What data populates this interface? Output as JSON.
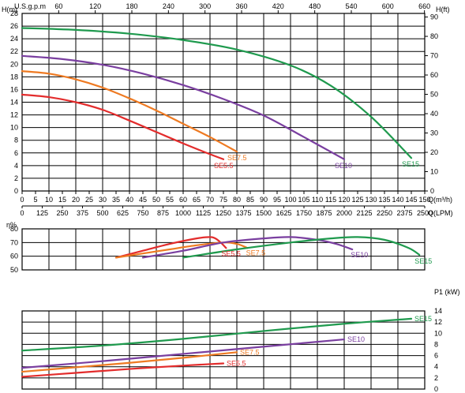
{
  "chart_data": [
    {
      "type": "line",
      "panel": "head",
      "ylabel_left": "H(m)",
      "ylabel_right": "H(ft)",
      "top_axis_label": "U.S.g.p.m",
      "top_ticks": [
        "60",
        "120",
        "180",
        "240",
        "300",
        "360",
        "420",
        "480",
        "540",
        "600",
        "660"
      ],
      "xlabel_1": "Q(m³/h)",
      "xlabel_2": "Q(LPM)",
      "x_ticks": [
        "0",
        "5",
        "10",
        "15",
        "20",
        "25",
        "30",
        "35",
        "40",
        "45",
        "50",
        "55",
        "60",
        "65",
        "70",
        "75",
        "80",
        "85",
        "90",
        "95",
        "100",
        "105",
        "110",
        "115",
        "120",
        "125",
        "130",
        "135",
        "140",
        "145",
        "150"
      ],
      "lpm_ticks": [
        "0",
        "125",
        "250",
        "375",
        "500",
        "625",
        "750",
        "875",
        "1000",
        "1125",
        "1250",
        "1375",
        "1500",
        "1625",
        "1750",
        "1875",
        "2000",
        "2125",
        "2250",
        "2375",
        "2500"
      ],
      "y_ticks": [
        "0",
        "2",
        "4",
        "6",
        "8",
        "10",
        "12",
        "14",
        "16",
        "18",
        "20",
        "22",
        "24",
        "26",
        "28"
      ],
      "y_ticks_right": [
        "0",
        "10",
        "20",
        "30",
        "40",
        "50",
        "60",
        "70",
        "80",
        "90"
      ],
      "xlim": [
        0,
        150
      ],
      "ylim": [
        0,
        28
      ],
      "grid": true,
      "series": [
        {
          "name": "SE5.5",
          "color": "#e32c2c",
          "points": [
            [
              0,
              15.2
            ],
            [
              10,
              14.8
            ],
            [
              20,
              14.0
            ],
            [
              30,
              12.8
            ],
            [
              40,
              11.1
            ],
            [
              50,
              9.3
            ],
            [
              60,
              7.5
            ],
            [
              70,
              5.8
            ],
            [
              75,
              5.0
            ]
          ]
        },
        {
          "name": "SE7.5",
          "color": "#ee7a22",
          "points": [
            [
              0,
              18.9
            ],
            [
              10,
              18.5
            ],
            [
              20,
              17.6
            ],
            [
              30,
              16.3
            ],
            [
              40,
              14.6
            ],
            [
              50,
              12.7
            ],
            [
              60,
              10.6
            ],
            [
              70,
              8.5
            ],
            [
              80,
              6.2
            ]
          ]
        },
        {
          "name": "SE10",
          "color": "#7a3fa0",
          "points": [
            [
              0,
              21.3
            ],
            [
              15,
              20.8
            ],
            [
              30,
              19.9
            ],
            [
              45,
              18.5
            ],
            [
              60,
              16.7
            ],
            [
              75,
              14.5
            ],
            [
              90,
              11.9
            ],
            [
              105,
              8.5
            ],
            [
              120,
              5.0
            ]
          ]
        },
        {
          "name": "SE15",
          "color": "#1f9a4e",
          "points": [
            [
              0,
              25.7
            ],
            [
              20,
              25.4
            ],
            [
              40,
              24.8
            ],
            [
              60,
              23.8
            ],
            [
              80,
              22.3
            ],
            [
              100,
              19.8
            ],
            [
              115,
              16.6
            ],
            [
              130,
              11.7
            ],
            [
              145,
              5.2
            ]
          ]
        }
      ]
    },
    {
      "type": "line",
      "panel": "efficiency",
      "ylabel": "η%",
      "y_ticks": [
        "50",
        "60",
        "70",
        "80"
      ],
      "ylim": [
        50,
        80
      ],
      "xlim": [
        0,
        150
      ],
      "grid": true,
      "series": [
        {
          "name": "SE5.5",
          "color": "#e32c2c",
          "points": [
            [
              35,
              59
            ],
            [
              45,
              64
            ],
            [
              55,
              69
            ],
            [
              65,
              73
            ],
            [
              70,
              74
            ],
            [
              72,
              73
            ],
            [
              74,
              70
            ],
            [
              76,
              66
            ]
          ]
        },
        {
          "name": "SE7.5",
          "color": "#ee7a22",
          "points": [
            [
              35,
              59
            ],
            [
              45,
              62
            ],
            [
              55,
              65
            ],
            [
              65,
              68
            ],
            [
              75,
              70
            ],
            [
              80,
              69
            ],
            [
              84,
              66
            ]
          ]
        },
        {
          "name": "SE10",
          "color": "#7a3fa0",
          "points": [
            [
              45,
              59
            ],
            [
              60,
              64
            ],
            [
              75,
              70
            ],
            [
              90,
              73
            ],
            [
              100,
              74
            ],
            [
              110,
              72
            ],
            [
              117,
              69
            ],
            [
              123,
              65
            ]
          ]
        },
        {
          "name": "SE15",
          "color": "#1f9a4e",
          "points": [
            [
              60,
              59
            ],
            [
              80,
              65
            ],
            [
              100,
              70
            ],
            [
              115,
              73
            ],
            [
              125,
              74
            ],
            [
              135,
              72
            ],
            [
              144,
              66
            ],
            [
              148,
              61
            ]
          ]
        }
      ]
    },
    {
      "type": "line",
      "panel": "power",
      "ylabel": "P1 (kW)",
      "y_ticks": [
        "0",
        "2",
        "4",
        "6",
        "8",
        "10",
        "12",
        "14"
      ],
      "ylim": [
        0,
        14
      ],
      "xlim": [
        0,
        150
      ],
      "grid": true,
      "series": [
        {
          "name": "SE5.5",
          "color": "#e32c2c",
          "points": [
            [
              0,
              2.2
            ],
            [
              20,
              2.9
            ],
            [
              40,
              3.6
            ],
            [
              60,
              4.2
            ],
            [
              75,
              4.6
            ]
          ]
        },
        {
          "name": "SE7.5",
          "color": "#ee7a22",
          "points": [
            [
              0,
              3.1
            ],
            [
              20,
              3.9
            ],
            [
              40,
              4.7
            ],
            [
              60,
              5.6
            ],
            [
              80,
              6.6
            ]
          ]
        },
        {
          "name": "SE10",
          "color": "#7a3fa0",
          "points": [
            [
              0,
              3.8
            ],
            [
              30,
              5.0
            ],
            [
              60,
              6.3
            ],
            [
              90,
              7.6
            ],
            [
              120,
              8.9
            ]
          ]
        },
        {
          "name": "SE15",
          "color": "#1f9a4e",
          "points": [
            [
              0,
              6.9
            ],
            [
              30,
              7.8
            ],
            [
              60,
              9.0
            ],
            [
              90,
              10.4
            ],
            [
              120,
              11.7
            ],
            [
              145,
              12.6
            ]
          ]
        }
      ]
    }
  ]
}
